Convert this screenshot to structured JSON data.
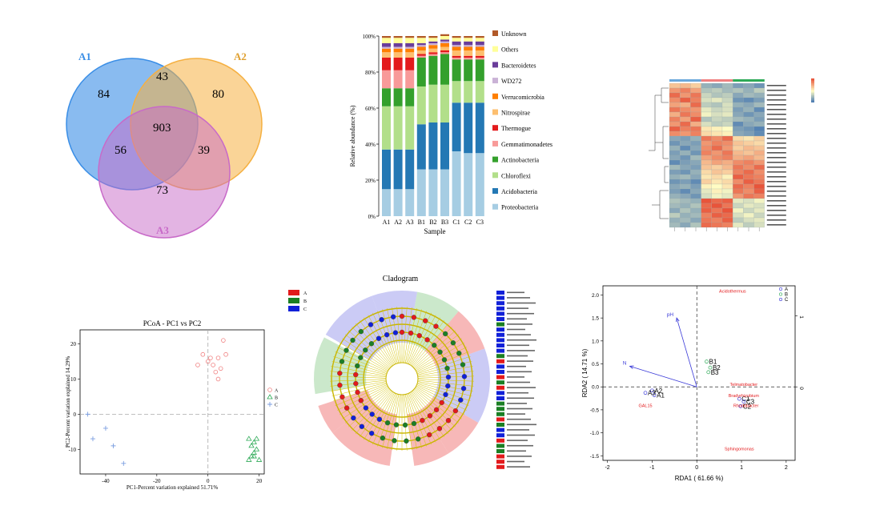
{
  "venn": {
    "labels": [
      "A1",
      "A2",
      "A3"
    ],
    "colors": [
      "#3a8ee6",
      "#f5b041",
      "#c86ac8"
    ],
    "regions": {
      "a1_only": "84",
      "a2_only": "80",
      "a3_only": "73",
      "a1_a2": "43",
      "a1_a3": "56",
      "a2_a3": "39",
      "all": "903"
    }
  },
  "chart_data": [
    {
      "type": "bar",
      "stacked": true,
      "categories": [
        "A1",
        "A2",
        "A3",
        "B1",
        "B2",
        "B3",
        "C1",
        "C2",
        "C3"
      ],
      "xlabel": "Sample",
      "ylabel": "Relative abundance (%)",
      "ylim": [
        0,
        100
      ],
      "yticks": [
        "0%",
        "20%",
        "40%",
        "60%",
        "80%",
        "100%"
      ],
      "legend_position": "right",
      "series": [
        {
          "name": "Proteobacteria",
          "color": "#a6cde3",
          "values": [
            15,
            15,
            15,
            26,
            26,
            26,
            36,
            35,
            35
          ]
        },
        {
          "name": "Acidobacteria",
          "color": "#2478b4",
          "values": [
            22,
            22,
            22,
            25,
            26,
            26,
            27,
            28,
            28
          ]
        },
        {
          "name": "Chloroflexi",
          "color": "#b2df8a",
          "values": [
            24,
            24,
            24,
            21,
            21,
            21,
            12,
            12,
            12
          ]
        },
        {
          "name": "Actinobacteria",
          "color": "#34a02c",
          "values": [
            10,
            10,
            10,
            16,
            16,
            17,
            12,
            12,
            12
          ]
        },
        {
          "name": "Gemmatimonadetes",
          "color": "#f89a99",
          "values": [
            10,
            10,
            10,
            1,
            1,
            1,
            1,
            1,
            1
          ]
        },
        {
          "name": "Thermogue",
          "color": "#e31a1c",
          "values": [
            7,
            7,
            7,
            1,
            1,
            1,
            1,
            1,
            1
          ]
        },
        {
          "name": "Nitrospirae",
          "color": "#fdbf6f",
          "values": [
            3,
            3,
            3,
            2,
            2,
            2,
            3,
            3,
            3
          ]
        },
        {
          "name": "Verrucomicrobia",
          "color": "#ff7f00",
          "values": [
            2,
            2,
            2,
            2,
            2,
            2,
            2,
            2,
            2
          ]
        },
        {
          "name": "WD272",
          "color": "#cab2d6",
          "values": [
            1,
            1,
            1,
            1,
            1,
            1,
            1,
            1,
            1
          ]
        },
        {
          "name": "Bacteroidetes",
          "color": "#6a3d9a",
          "values": [
            2,
            2,
            2,
            1,
            1,
            1,
            2,
            2,
            2
          ]
        },
        {
          "name": "Others",
          "color": "#ffff99",
          "values": [
            3,
            3,
            3,
            3,
            2,
            2,
            2,
            2,
            2
          ]
        },
        {
          "name": "Unknown",
          "color": "#b15928",
          "values": [
            1,
            1,
            1,
            1,
            1,
            1,
            1,
            1,
            1
          ]
        }
      ]
    },
    {
      "type": "heatmap",
      "rows": 30,
      "cols": 9,
      "group_colors": [
        "#6aa8dc",
        "#f08080",
        "#2eaa57"
      ],
      "color_scale": [
        "#3a6fb0",
        "#fffcc4",
        "#e8543a"
      ],
      "values": [
        [
          0.5,
          0.6,
          0.4,
          -0.8,
          -0.9,
          -0.7,
          -1.0,
          -0.9,
          -1.1
        ],
        [
          0.9,
          1.1,
          0.8,
          -0.6,
          -0.5,
          -0.7,
          -0.6,
          -0.8,
          -0.5
        ],
        [
          1.3,
          0.9,
          1.2,
          -0.4,
          -0.6,
          -0.5,
          -0.9,
          -0.7,
          -0.8
        ],
        [
          1.0,
          1.4,
          1.1,
          -0.3,
          -0.2,
          -0.4,
          -1.1,
          -1.2,
          -1.0
        ],
        [
          0.8,
          0.7,
          1.3,
          -0.5,
          -0.6,
          -0.3,
          -0.8,
          -0.9,
          -0.7
        ],
        [
          1.2,
          1.0,
          0.9,
          -0.2,
          -0.4,
          -0.3,
          -1.0,
          -0.8,
          -1.2
        ],
        [
          0.7,
          1.2,
          1.0,
          -0.1,
          -0.3,
          -0.2,
          -0.9,
          -1.1,
          -0.9
        ],
        [
          1.1,
          0.8,
          1.4,
          -0.6,
          -0.4,
          -0.5,
          -0.7,
          -0.8,
          -1.0
        ],
        [
          0.9,
          1.3,
          0.7,
          -0.3,
          -0.5,
          -0.4,
          -1.2,
          -0.9,
          -0.8
        ],
        [
          1.4,
          1.1,
          1.2,
          0.2,
          0.1,
          0.0,
          -1.0,
          -1.1,
          -1.3
        ],
        [
          1.0,
          0.9,
          1.1,
          0.3,
          0.2,
          0.1,
          -0.9,
          -1.0,
          -1.2
        ],
        [
          -0.9,
          -1.0,
          -0.8,
          1.2,
          1.0,
          1.3,
          0.3,
          0.2,
          0.4
        ],
        [
          -1.1,
          -0.9,
          -1.0,
          0.9,
          1.1,
          1.0,
          0.5,
          0.4,
          0.3
        ],
        [
          -0.8,
          -1.2,
          -0.9,
          1.0,
          1.3,
          0.9,
          0.4,
          0.6,
          0.5
        ],
        [
          -1.0,
          -0.8,
          -1.1,
          1.1,
          0.9,
          1.2,
          0.6,
          0.5,
          0.7
        ],
        [
          -0.9,
          -1.1,
          -0.7,
          0.8,
          1.0,
          1.1,
          0.7,
          0.8,
          0.6
        ],
        [
          -1.2,
          -1.0,
          -0.9,
          0.6,
          0.8,
          0.7,
          1.0,
          1.1,
          0.9
        ],
        [
          -0.7,
          -0.9,
          -1.0,
          0.5,
          0.4,
          0.6,
          1.2,
          1.0,
          1.3
        ],
        [
          -1.0,
          -1.1,
          -0.8,
          0.3,
          0.5,
          0.4,
          1.1,
          1.3,
          1.0
        ],
        [
          -0.8,
          -0.7,
          -0.9,
          0.2,
          0.3,
          0.1,
          1.4,
          1.2,
          1.1
        ],
        [
          -1.1,
          -1.0,
          -1.2,
          0.4,
          0.2,
          0.3,
          1.0,
          1.4,
          1.2
        ],
        [
          -0.9,
          -0.8,
          -1.0,
          0.1,
          0.0,
          0.2,
          1.3,
          1.1,
          1.5
        ],
        [
          -1.0,
          -1.2,
          -0.9,
          -0.2,
          0.1,
          -0.1,
          1.2,
          1.0,
          1.4
        ],
        [
          -0.8,
          -0.9,
          -1.1,
          -0.3,
          -0.1,
          -0.2,
          0.9,
          1.2,
          1.1
        ],
        [
          -0.6,
          -0.7,
          -0.8,
          1.5,
          1.3,
          1.4,
          -0.2,
          -0.3,
          -0.1
        ],
        [
          -0.7,
          -0.8,
          -0.6,
          1.3,
          1.5,
          1.2,
          -0.4,
          -0.2,
          -0.3
        ],
        [
          -0.9,
          -0.6,
          -0.8,
          1.4,
          1.2,
          1.5,
          -0.1,
          -0.4,
          -0.2
        ],
        [
          -0.5,
          -0.8,
          -0.7,
          1.1,
          1.4,
          1.3,
          -0.3,
          -0.1,
          -0.4
        ],
        [
          -0.8,
          -0.7,
          -0.9,
          1.2,
          1.1,
          1.4,
          -0.5,
          -0.3,
          -0.2
        ],
        [
          -0.7,
          -0.9,
          -0.6,
          1.3,
          1.2,
          1.1,
          -0.2,
          -0.5,
          -0.3
        ]
      ]
    },
    {
      "type": "scatter",
      "title": "PCoA - PC1 vs PC2",
      "xlabel": "PC1-Percent variation explained 51.71%",
      "ylabel": "PC2-Percent variation explained 14.29%",
      "xlim": [
        -50,
        22
      ],
      "ylim": [
        -17,
        24
      ],
      "xticks": [
        -40,
        -20,
        0,
        20
      ],
      "yticks": [
        -10,
        0,
        10,
        20
      ],
      "legend_position": "right",
      "series": [
        {
          "name": "A",
          "color": "#f08080",
          "marker": "circle",
          "points": [
            [
              -4,
              14
            ],
            [
              -2,
              17
            ],
            [
              0,
              15
            ],
            [
              2,
              14
            ],
            [
              4,
              16
            ],
            [
              6,
              21
            ],
            [
              7,
              17
            ],
            [
              3,
              12
            ],
            [
              5,
              13
            ],
            [
              4,
              10
            ],
            [
              1,
              16
            ]
          ]
        },
        {
          "name": "B",
          "color": "#2eaa57",
          "marker": "triangle",
          "points": [
            [
              16,
              -7
            ],
            [
              17,
              -9
            ],
            [
              18,
              -8
            ],
            [
              19,
              -7
            ],
            [
              17,
              -12
            ],
            [
              16,
              -13
            ],
            [
              18,
              -12
            ],
            [
              20,
              -13
            ],
            [
              19,
              -10
            ],
            [
              18,
              -11
            ]
          ]
        },
        {
          "name": "C",
          "color": "#7b9ee0",
          "marker": "plus",
          "points": [
            [
              -47,
              0
            ],
            [
              -45,
              -7
            ],
            [
              -40,
              -4
            ],
            [
              -37,
              -9
            ],
            [
              -33,
              -14
            ]
          ]
        }
      ]
    },
    {
      "type": "other",
      "kind": "cladogram",
      "title": "Cladogram",
      "legend": [
        {
          "label": "A",
          "color": "#e31a1c"
        },
        {
          "label": "B",
          "color": "#1b7f24"
        },
        {
          "label": "C",
          "color": "#1020d8"
        }
      ],
      "sectors": [
        {
          "start": -172,
          "end": -128,
          "color": "#f4a0a0"
        },
        {
          "start": -128,
          "end": -108,
          "color": "#f4a0a0"
        },
        {
          "start": -100,
          "end": -62,
          "color": "#b9e0b9"
        },
        {
          "start": -60,
          "end": -20,
          "color": "#b9b9f2"
        },
        {
          "start": -20,
          "end": 10,
          "color": "#b9b9f2"
        },
        {
          "start": 10,
          "end": 40,
          "color": "#b9e0b9"
        },
        {
          "start": 40,
          "end": 70,
          "color": "#f4a0a0"
        },
        {
          "start": 70,
          "end": 120,
          "color": "#b9b9f2"
        },
        {
          "start": 120,
          "end": 148,
          "color": "#f4a0a0"
        },
        {
          "start": 148,
          "end": 172,
          "color": "#f4a0a0"
        }
      ]
    },
    {
      "type": "scatter",
      "kind": "biplot",
      "xlabel": "RDA1 ( 61.66 %)",
      "ylabel": "RDA2 ( 14.71 %)",
      "xlim": [
        -2.1,
        2.2
      ],
      "ylim": [
        -1.6,
        2.2
      ],
      "xticks": [
        -2,
        -1,
        0,
        1,
        2
      ],
      "yticks": [
        -1.5,
        -1.0,
        -0.5,
        0.0,
        0.5,
        1.0,
        1.5,
        2.0
      ],
      "legend_position": "top-right",
      "legend": [
        {
          "label": "A",
          "color": "#3a3ad8"
        },
        {
          "label": "B",
          "color": "#2eaa57"
        },
        {
          "label": "C",
          "color": "#3a3ad8"
        }
      ],
      "samples": [
        {
          "label": "A1",
          "x": -0.95,
          "y": -0.18
        },
        {
          "label": "A2",
          "x": -1.0,
          "y": -0.08
        },
        {
          "label": "A3",
          "x": -1.15,
          "y": -0.13
        },
        {
          "label": "B1",
          "x": 0.22,
          "y": 0.55
        },
        {
          "label": "B2",
          "x": 0.3,
          "y": 0.42
        },
        {
          "label": "B3",
          "x": 0.26,
          "y": 0.32
        },
        {
          "label": "C1",
          "x": 0.95,
          "y": -0.26
        },
        {
          "label": "C2",
          "x": 0.98,
          "y": -0.42
        },
        {
          "label": "C3",
          "x": 1.05,
          "y": -0.32
        }
      ],
      "arrows": [
        {
          "label": "pH",
          "x": -0.45,
          "y": 1.5
        },
        {
          "label": "N",
          "x": -1.5,
          "y": 0.45
        }
      ],
      "species": [
        {
          "label": "Acidothermus",
          "x": 0.8,
          "y": 2.05
        },
        {
          "label": "Telmatobacter",
          "x": 1.05,
          "y": 0.02
        },
        {
          "label": "Bradyrhizobium",
          "x": 1.05,
          "y": -0.22
        },
        {
          "label": "Rhodobacter",
          "x": 1.1,
          "y": -0.44
        },
        {
          "label": "GAL15",
          "x": -1.15,
          "y": -0.44
        },
        {
          "label": "Sphingomonas",
          "x": 0.95,
          "y": -1.38
        }
      ],
      "secondary_yticks": [
        "1",
        "0"
      ]
    }
  ]
}
